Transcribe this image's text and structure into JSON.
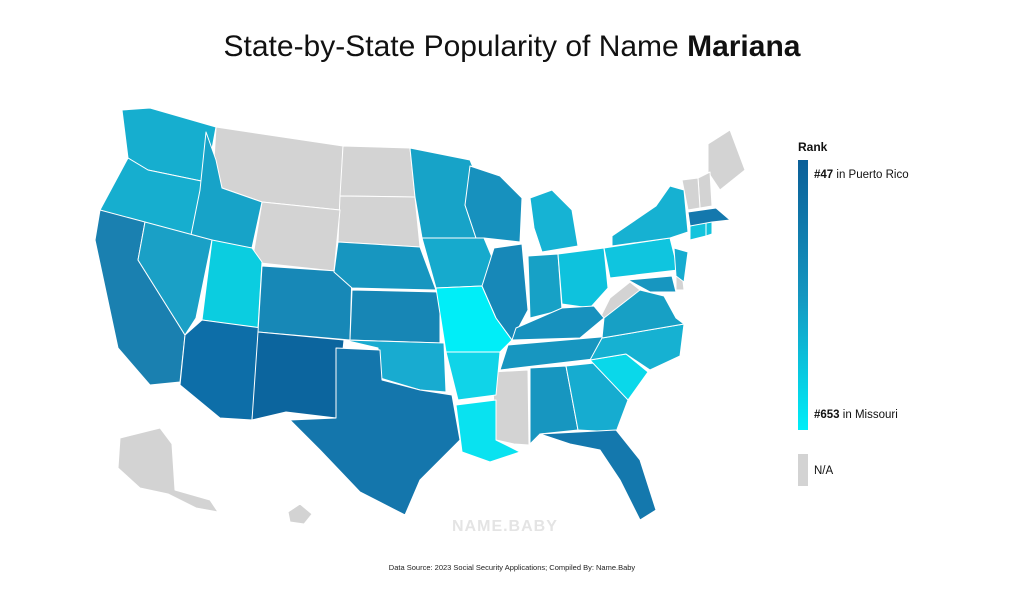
{
  "title": {
    "prefix": "State-by-State Popularity of Name",
    "name": "Mariana"
  },
  "legend": {
    "title": "Rank",
    "top_rank": "#47",
    "top_place": "in Puerto Rico",
    "bottom_rank": "#653",
    "bottom_place": "in Missouri",
    "na_label": "N/A"
  },
  "colors": {
    "darkest": "#0b5f98",
    "mid": "#1496c0",
    "lightest": "#00eef8",
    "na": "#d3d3d3"
  },
  "watermark": "NAME.BABY",
  "source": "Data Source: 2023 Social Security Applications; Compiled By: Name.Baby"
}
